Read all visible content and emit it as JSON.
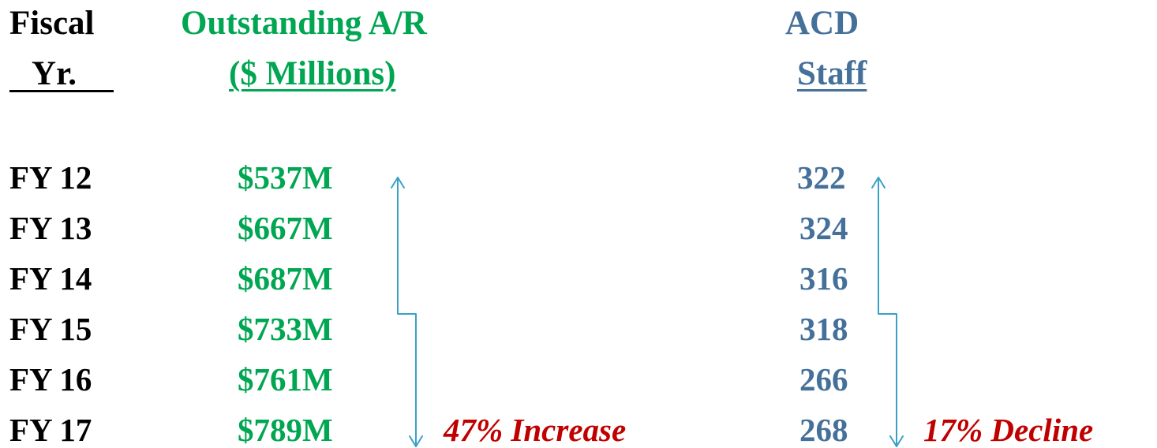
{
  "headers": {
    "fiscal_line1": "Fiscal",
    "fiscal_line2": "Yr.",
    "ar_line1": "Outstanding  A/R",
    "ar_line2": "($ Millions)",
    "staff_line1": "ACD",
    "staff_line2": "Staff"
  },
  "rows": [
    {
      "year": "FY 12",
      "ar": "$537M",
      "staff": "322"
    },
    {
      "year": "FY 13",
      "ar": "$667M",
      "staff": "324"
    },
    {
      "year": "FY 14",
      "ar": "$687M",
      "staff": "316"
    },
    {
      "year": "FY 15",
      "ar": "$733M",
      "staff": "318"
    },
    {
      "year": "FY 16",
      "ar": "$761M",
      "staff": "266"
    },
    {
      "year": "FY 17",
      "ar": "$789M",
      "staff": "268"
    }
  ],
  "annotations": {
    "ar_change": "47% Increase",
    "staff_change": "17% Decline"
  },
  "colors": {
    "year": "#000000",
    "ar": "#00a651",
    "staff": "#44709a",
    "annotation": "#c00000",
    "arrow": "#3aa0c8"
  }
}
